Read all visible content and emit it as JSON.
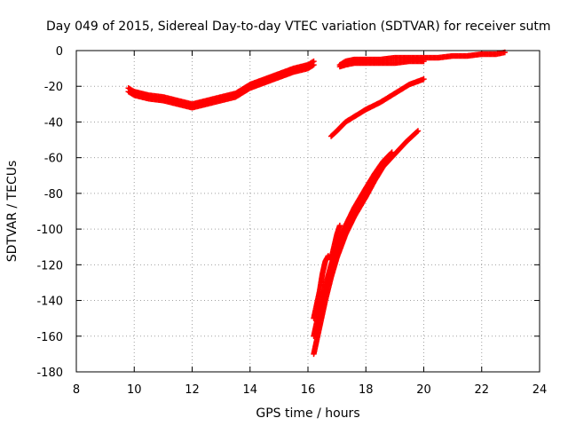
{
  "chart_data": {
    "type": "scatter",
    "title": "Day 049 of 2015, Sidereal Day-to-day VTEC variation (SDTVAR) for receiver sutm",
    "xlabel": "GPS time / hours",
    "ylabel": "SDTVAR / TECUs",
    "xlim": [
      8,
      24
    ],
    "ylim": [
      -180,
      0
    ],
    "xticks": [
      8,
      10,
      12,
      14,
      16,
      18,
      20,
      22,
      24
    ],
    "yticks": [
      0,
      -20,
      -40,
      -60,
      -80,
      -100,
      -120,
      -140,
      -160,
      -180
    ],
    "grid": true,
    "marker_color": "#ff0000",
    "series": [
      {
        "x": [
          9.8,
          10.0,
          10.5,
          11.0,
          11.5,
          12.0,
          12.5,
          13.0,
          13.5,
          14.0,
          14.5,
          15.0,
          15.5,
          16.0,
          16.2
        ],
        "y": [
          -23,
          -25,
          -27,
          -28,
          -30,
          -32,
          -30,
          -28,
          -26,
          -21,
          -18,
          -15,
          -12,
          -10,
          -8
        ]
      },
      {
        "x": [
          9.8,
          10.0,
          10.5,
          11.0,
          11.5,
          12.0,
          12.5,
          13.0,
          13.5,
          14.0,
          14.5,
          15.0,
          15.5,
          16.0,
          16.2
        ],
        "y": [
          -21,
          -23,
          -25,
          -26,
          -28,
          -30,
          -28,
          -26,
          -24,
          -19,
          -16,
          -13,
          -10,
          -8,
          -6
        ]
      },
      {
        "x": [
          17.1,
          17.3,
          17.6,
          18.0,
          18.5,
          19.0,
          19.5,
          20.0,
          20.5,
          21.0,
          21.5,
          22.0,
          22.5,
          22.8
        ],
        "y": [
          -8,
          -6,
          -5,
          -5,
          -5,
          -4,
          -4,
          -4,
          -4,
          -3,
          -3,
          -2,
          -2,
          -1
        ]
      },
      {
        "x": [
          17.1,
          17.3,
          17.6,
          18.0,
          18.5,
          19.0,
          19.5,
          20.0
        ],
        "y": [
          -9,
          -8,
          -7,
          -7,
          -7,
          -7,
          -6,
          -6
        ]
      },
      {
        "x": [
          16.8,
          17.0,
          17.3,
          17.7,
          18.0,
          18.5,
          19.0,
          19.5,
          20.0
        ],
        "y": [
          -48,
          -45,
          -40,
          -36,
          -33,
          -29,
          -24,
          -19,
          -16
        ]
      },
      {
        "x": [
          16.2,
          16.4,
          16.6,
          16.8,
          17.0,
          17.3,
          17.6,
          18.0,
          18.3,
          18.6,
          19.0,
          19.4,
          19.8
        ],
        "y": [
          -170,
          -155,
          -140,
          -127,
          -116,
          -103,
          -93,
          -82,
          -73,
          -65,
          -58,
          -51,
          -45
        ]
      },
      {
        "x": [
          16.2,
          16.4,
          16.6,
          16.8,
          17.0,
          17.3,
          17.6,
          18.0,
          18.3,
          18.6,
          18.9
        ],
        "y": [
          -160,
          -145,
          -132,
          -120,
          -110,
          -98,
          -88,
          -77,
          -69,
          -62,
          -57
        ]
      },
      {
        "x": [
          16.2,
          16.4,
          16.5,
          16.6,
          16.7,
          16.8,
          16.9,
          17.0,
          17.1
        ],
        "y": [
          -150,
          -135,
          -125,
          -118,
          -115,
          -117,
          -110,
          -103,
          -98
        ]
      }
    ]
  }
}
